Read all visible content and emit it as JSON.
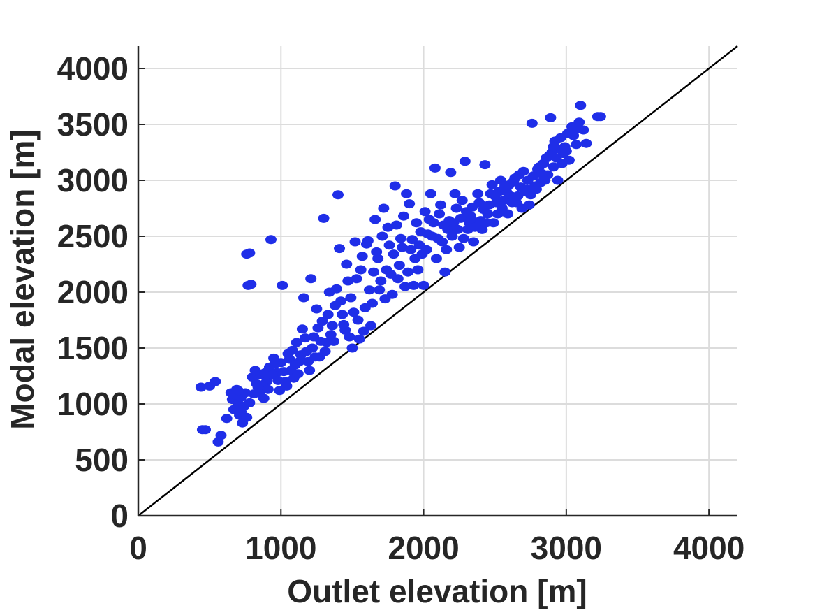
{
  "chart_data": {
    "type": "scatter",
    "xlabel": "Outlet elevation [m]",
    "ylabel": "Modal elevation [m]",
    "xlim": [
      0,
      4200
    ],
    "ylim": [
      0,
      4200
    ],
    "xticks": [
      0,
      1000,
      2000,
      3000,
      4000
    ],
    "yticks": [
      0,
      500,
      1000,
      1500,
      2000,
      2500,
      3000,
      3500,
      4000
    ],
    "xtick_labels": [
      "0",
      "1000",
      "2000",
      "3000",
      "4000"
    ],
    "ytick_labels": [
      "0",
      "500",
      "1000",
      "1500",
      "2000",
      "2500",
      "3000",
      "3500",
      "4000"
    ],
    "grid": true,
    "reference_line": {
      "type": "1:1",
      "from": [
        0,
        0
      ],
      "to": [
        4200,
        4200
      ],
      "color": "#000000"
    },
    "marker_color": "#1f2ee8",
    "series": [
      {
        "points": [
          [
            440,
            1150
          ],
          [
            450,
            770
          ],
          [
            470,
            770
          ],
          [
            500,
            1160
          ],
          [
            540,
            1200
          ],
          [
            560,
            660
          ],
          [
            580,
            720
          ],
          [
            620,
            870
          ],
          [
            650,
            1100
          ],
          [
            660,
            1040
          ],
          [
            670,
            950
          ],
          [
            690,
            1130
          ],
          [
            700,
            1000
          ],
          [
            710,
            900
          ],
          [
            720,
            1060
          ],
          [
            730,
            830
          ],
          [
            740,
            980
          ],
          [
            750,
            1100
          ],
          [
            760,
            2340
          ],
          [
            780,
            2350
          ],
          [
            770,
            2060
          ],
          [
            790,
            2070
          ],
          [
            800,
            1240
          ],
          [
            820,
            1300
          ],
          [
            840,
            1150
          ],
          [
            860,
            1260
          ],
          [
            880,
            1050
          ],
          [
            900,
            1200
          ],
          [
            920,
            1330
          ],
          [
            930,
            2470
          ],
          [
            950,
            1410
          ],
          [
            970,
            1280
          ],
          [
            990,
            1120
          ],
          [
            1000,
            1370
          ],
          [
            1010,
            2060
          ],
          [
            1030,
            1200
          ],
          [
            1050,
            1450
          ],
          [
            1070,
            1300
          ],
          [
            1090,
            1230
          ],
          [
            1110,
            1550
          ],
          [
            1130,
            1380
          ],
          [
            1150,
            1670
          ],
          [
            1160,
            1950
          ],
          [
            1180,
            1470
          ],
          [
            1200,
            1300
          ],
          [
            1210,
            2120
          ],
          [
            1230,
            1600
          ],
          [
            1250,
            1850
          ],
          [
            1270,
            1420
          ],
          [
            1290,
            1740
          ],
          [
            1300,
            2660
          ],
          [
            1320,
            1550
          ],
          [
            1340,
            2000
          ],
          [
            1360,
            1700
          ],
          [
            1380,
            1880
          ],
          [
            1400,
            2870
          ],
          [
            1410,
            2390
          ],
          [
            1430,
            1800
          ],
          [
            1450,
            1660
          ],
          [
            1470,
            2100
          ],
          [
            1490,
            1950
          ],
          [
            1500,
            1500
          ],
          [
            1520,
            2450
          ],
          [
            1540,
            1750
          ],
          [
            1560,
            2200
          ],
          [
            1580,
            1650
          ],
          [
            1600,
            2430
          ],
          [
            1620,
            2020
          ],
          [
            1640,
            1900
          ],
          [
            1660,
            2650
          ],
          [
            1680,
            2300
          ],
          [
            1700,
            2100
          ],
          [
            1720,
            2750
          ],
          [
            1740,
            2200
          ],
          [
            1760,
            2420
          ],
          [
            1780,
            1980
          ],
          [
            1800,
            2950
          ],
          [
            1810,
            2600
          ],
          [
            1830,
            2240
          ],
          [
            1850,
            2400
          ],
          [
            1870,
            2050
          ],
          [
            1880,
            2880
          ],
          [
            1900,
            2790
          ],
          [
            1920,
            2470
          ],
          [
            1940,
            2300
          ],
          [
            1960,
            2200
          ],
          [
            1980,
            2540
          ],
          [
            2000,
            2060
          ],
          [
            2020,
            2380
          ],
          [
            2040,
            2650
          ],
          [
            2060,
            2500
          ],
          [
            2080,
            3110
          ],
          [
            2090,
            2300
          ],
          [
            2110,
            2700
          ],
          [
            2130,
            2450
          ],
          [
            2150,
            2180
          ],
          [
            2170,
            2560
          ],
          [
            2190,
            3070
          ],
          [
            2210,
            2620
          ],
          [
            2230,
            2750
          ],
          [
            2250,
            2400
          ],
          [
            2270,
            2820
          ],
          [
            2290,
            3170
          ],
          [
            2310,
            2560
          ],
          [
            2330,
            2680
          ],
          [
            2350,
            2450
          ],
          [
            2370,
            2620
          ],
          [
            2390,
            2800
          ],
          [
            2410,
            2560
          ],
          [
            2430,
            3140
          ],
          [
            2450,
            2700
          ],
          [
            2470,
            2880
          ],
          [
            2490,
            2620
          ],
          [
            2510,
            2800
          ],
          [
            2530,
            2900
          ],
          [
            2550,
            2750
          ],
          [
            2570,
            2950
          ],
          [
            2590,
            2700
          ],
          [
            2610,
            2860
          ],
          [
            2630,
            2990
          ],
          [
            2650,
            2800
          ],
          [
            2670,
            3050
          ],
          [
            2690,
            2750
          ],
          [
            2710,
            2900
          ],
          [
            2730,
            3000
          ],
          [
            2750,
            2870
          ],
          [
            2760,
            3510
          ],
          [
            2780,
            2950
          ],
          [
            2800,
            3100
          ],
          [
            2820,
            2980
          ],
          [
            2840,
            3150
          ],
          [
            2860,
            3200
          ],
          [
            2870,
            3050
          ],
          [
            2890,
            3560
          ],
          [
            2900,
            3250
          ],
          [
            2910,
            3120
          ],
          [
            2920,
            3350
          ],
          [
            2930,
            3200
          ],
          [
            2940,
            3000
          ],
          [
            2950,
            3280
          ],
          [
            2960,
            3380
          ],
          [
            2970,
            3150
          ],
          [
            2990,
            3300
          ],
          [
            3010,
            3420
          ],
          [
            3040,
            3480
          ],
          [
            3070,
            3320
          ],
          [
            3090,
            3520
          ],
          [
            3100,
            3670
          ],
          [
            3120,
            3450
          ],
          [
            3140,
            3330
          ],
          [
            3220,
            3570
          ],
          [
            3240,
            3570
          ],
          [
            680,
            1080
          ],
          [
            700,
            1120
          ],
          [
            720,
            930
          ],
          [
            760,
            880
          ],
          [
            780,
            1010
          ],
          [
            810,
            1090
          ],
          [
            830,
            1180
          ],
          [
            850,
            1100
          ],
          [
            870,
            1170
          ],
          [
            890,
            1280
          ],
          [
            910,
            1130
          ],
          [
            940,
            1260
          ],
          [
            960,
            1360
          ],
          [
            980,
            1210
          ],
          [
            1020,
            1290
          ],
          [
            1040,
            1160
          ],
          [
            1060,
            1400
          ],
          [
            1080,
            1480
          ],
          [
            1100,
            1350
          ],
          [
            1120,
            1270
          ],
          [
            1140,
            1440
          ],
          [
            1170,
            1590
          ],
          [
            1190,
            1380
          ],
          [
            1220,
            1500
          ],
          [
            1240,
            1420
          ],
          [
            1260,
            1680
          ],
          [
            1280,
            1560
          ],
          [
            1310,
            1470
          ],
          [
            1330,
            1800
          ],
          [
            1350,
            1620
          ],
          [
            1370,
            1560
          ],
          [
            1390,
            2030
          ],
          [
            1420,
            1920
          ],
          [
            1440,
            1710
          ],
          [
            1460,
            2250
          ],
          [
            1480,
            1600
          ],
          [
            1510,
            1820
          ],
          [
            1530,
            2120
          ],
          [
            1550,
            1580
          ],
          [
            1570,
            2320
          ],
          [
            1590,
            1860
          ],
          [
            1610,
            2460
          ],
          [
            1630,
            1700
          ],
          [
            1650,
            2180
          ],
          [
            1670,
            2360
          ],
          [
            1690,
            2020
          ],
          [
            1710,
            2500
          ],
          [
            1730,
            1940
          ],
          [
            1750,
            2580
          ],
          [
            1770,
            2160
          ],
          [
            1790,
            2340
          ],
          [
            1820,
            2120
          ],
          [
            1840,
            2480
          ],
          [
            1860,
            2680
          ],
          [
            1890,
            2180
          ],
          [
            1910,
            2380
          ],
          [
            1930,
            2060
          ],
          [
            1950,
            2620
          ],
          [
            1970,
            2420
          ],
          [
            1990,
            2340
          ],
          [
            2010,
            2720
          ],
          [
            2030,
            2520
          ],
          [
            2050,
            2880
          ],
          [
            2070,
            2620
          ],
          [
            2100,
            2480
          ],
          [
            2120,
            2780
          ],
          [
            2140,
            2600
          ],
          [
            2160,
            2380
          ],
          [
            2180,
            2640
          ],
          [
            2200,
            2500
          ],
          [
            2220,
            2880
          ],
          [
            2240,
            2560
          ],
          [
            2260,
            2660
          ],
          [
            2280,
            2480
          ],
          [
            2300,
            2720
          ],
          [
            2320,
            2620
          ],
          [
            2340,
            2760
          ],
          [
            2360,
            2580
          ],
          [
            2380,
            2880
          ],
          [
            2400,
            2640
          ],
          [
            2420,
            2740
          ],
          [
            2440,
            2620
          ],
          [
            2460,
            2780
          ],
          [
            2480,
            2960
          ],
          [
            2500,
            2860
          ],
          [
            2520,
            2700
          ],
          [
            2540,
            3000
          ],
          [
            2560,
            2820
          ],
          [
            2580,
            2900
          ],
          [
            2600,
            2960
          ],
          [
            2620,
            2800
          ],
          [
            2640,
            3020
          ],
          [
            2660,
            2860
          ],
          [
            2680,
            2940
          ],
          [
            2700,
            3080
          ],
          [
            2720,
            2920
          ],
          [
            2740,
            2780
          ],
          [
            2770,
            3040
          ],
          [
            2790,
            2920
          ],
          [
            2810,
            3120
          ],
          [
            2830,
            3060
          ],
          [
            2850,
            3000
          ],
          [
            2880,
            3220
          ],
          [
            2910,
            3300
          ],
          [
            2980,
            3240
          ],
          [
            3000,
            3260
          ],
          [
            3020,
            3180
          ],
          [
            3050,
            3400
          ],
          [
            3080,
            3460
          ]
        ]
      }
    ]
  }
}
